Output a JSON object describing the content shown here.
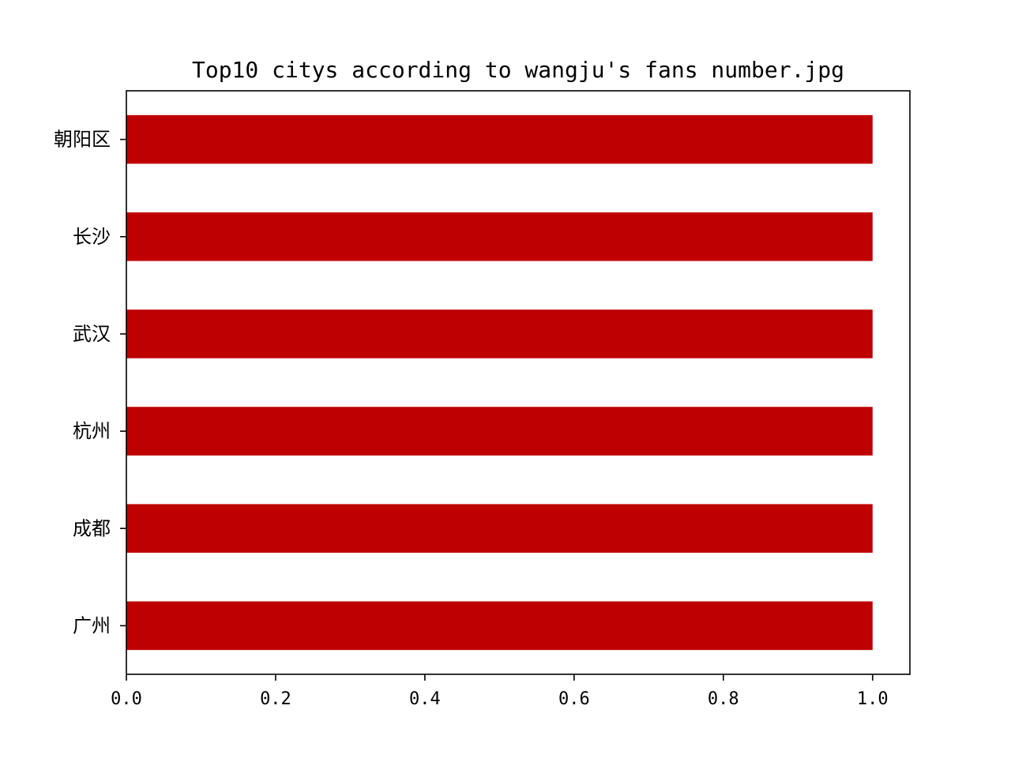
{
  "chart_data": {
    "type": "bar",
    "orientation": "horizontal",
    "title": "Top10 citys according to wangju's fans number.jpg",
    "xlabel": "",
    "ylabel": "",
    "categories": [
      "朝阳区",
      "长沙",
      "武汉",
      "杭州",
      "成都",
      "广州"
    ],
    "values": [
      1,
      1,
      1,
      1,
      1,
      1
    ],
    "xlim": [
      0,
      1.05
    ],
    "xticks": [
      0.0,
      0.2,
      0.4,
      0.6,
      0.8,
      1.0
    ],
    "xtick_labels": [
      "0.0",
      "0.2",
      "0.4",
      "0.6",
      "0.8",
      "1.0"
    ],
    "grid": false,
    "bar_color": "#bf0000"
  }
}
